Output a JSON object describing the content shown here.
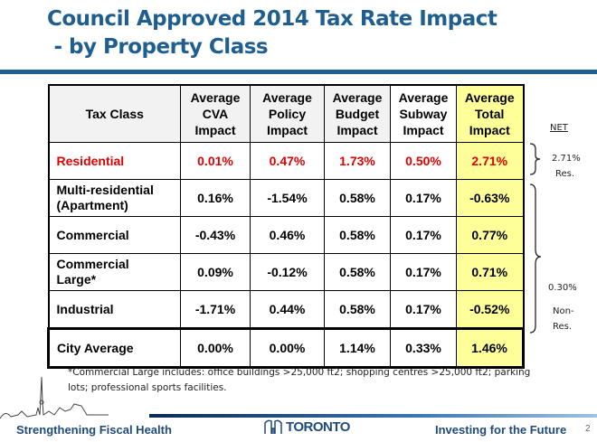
{
  "title": {
    "line1": "Council Approved 2014 Tax Rate Impact",
    "line2": " - by Property Class"
  },
  "table": {
    "headers": [
      "Tax Class",
      "Average\nCVA\nImpact",
      "Average\nPolicy\nImpact",
      "Average\nBudget\nImpact",
      "Average\nSubway\nImpact",
      "Average\nTotal\nImpact"
    ],
    "rows": [
      {
        "class": "Residential",
        "cva": "0.01%",
        "policy": "0.47%",
        "budget": "1.73%",
        "subway": "0.50%",
        "total": "2.71%"
      },
      {
        "class": "Multi-residential\n(Apartment)",
        "cva": "0.16%",
        "policy": "-1.54%",
        "budget": "0.58%",
        "subway": "0.17%",
        "total": "-0.63%"
      },
      {
        "class": "Commercial",
        "cva": "-0.43%",
        "policy": "0.46%",
        "budget": "0.58%",
        "subway": "0.17%",
        "total": "0.77%"
      },
      {
        "class": "Commercial\nLarge*",
        "cva": "0.09%",
        "policy": "-0.12%",
        "budget": "0.58%",
        "subway": "0.17%",
        "total": "0.71%"
      },
      {
        "class": "Industrial",
        "cva": "-1.71%",
        "policy": "0.44%",
        "budget": "0.58%",
        "subway": "0.17%",
        "total": "-0.52%"
      },
      {
        "class": "City Average",
        "cva": "0.00%",
        "policy": "0.00%",
        "budget": "1.14%",
        "subway": "0.33%",
        "total": "1.46%"
      }
    ]
  },
  "net": {
    "label": "NET",
    "res_value": "2.71%",
    "res_label": "Res.",
    "nonres_value": "0.30%",
    "nonres_label": "Non-\nRes."
  },
  "footnote": "*Commercial  Large includes: office buildings >25,000 ft2;  shopping centres >25,000 ft2; parking lots; professional sports facilities.",
  "footer": {
    "left": "Strengthening  Fiscal Health",
    "logo": "TORONTO",
    "right": "Investing for the Future",
    "page": "2"
  },
  "colors": {
    "title": "#1f5f8f",
    "residential": "#e00000",
    "total_highlight": "#ffff99"
  }
}
